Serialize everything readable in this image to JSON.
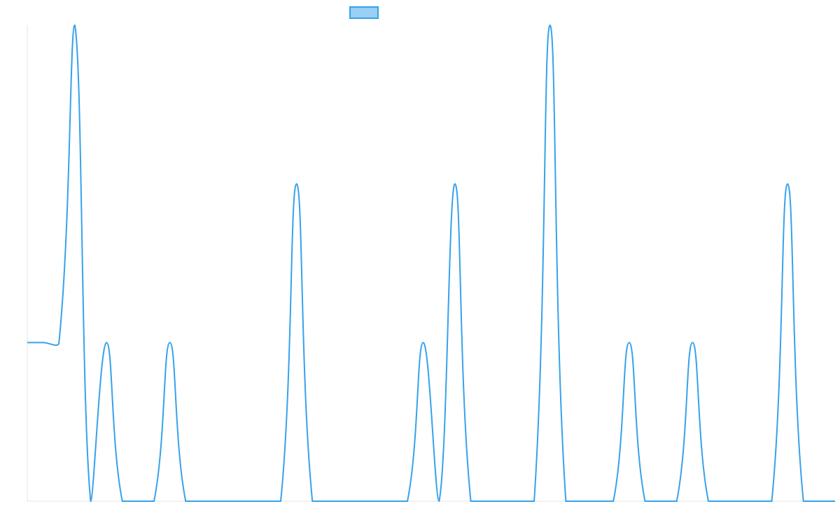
{
  "chart_data": {
    "type": "line",
    "categories": [
      null,
      null,
      null,
      null,
      null,
      null,
      null,
      null,
      null,
      null,
      null,
      null,
      null,
      null,
      null,
      null,
      null,
      null,
      null,
      null,
      null,
      null,
      null,
      null,
      null,
      null,
      null,
      null,
      null,
      null,
      null,
      null,
      null,
      null,
      null,
      null,
      null,
      null,
      null,
      null,
      null,
      null,
      null,
      null,
      null,
      null,
      null,
      null,
      null,
      null,
      null,
      null
    ],
    "series": [
      {
        "color": "#36a2eb",
        "legend_fill": "#9ad0f5",
        "values": [
          1,
          1,
          1,
          3,
          0,
          1,
          0,
          0,
          0,
          1,
          0,
          0,
          0,
          0,
          0,
          0,
          0,
          2,
          0,
          0,
          0,
          0,
          0,
          0,
          0,
          1,
          0,
          2,
          0,
          0,
          0,
          0,
          0,
          3,
          0,
          0,
          0,
          0,
          1,
          0,
          0,
          0,
          1,
          0,
          0,
          0,
          0,
          0,
          2,
          0,
          0,
          0
        ]
      }
    ],
    "ylim": [
      0,
      3
    ],
    "legend": "top"
  }
}
